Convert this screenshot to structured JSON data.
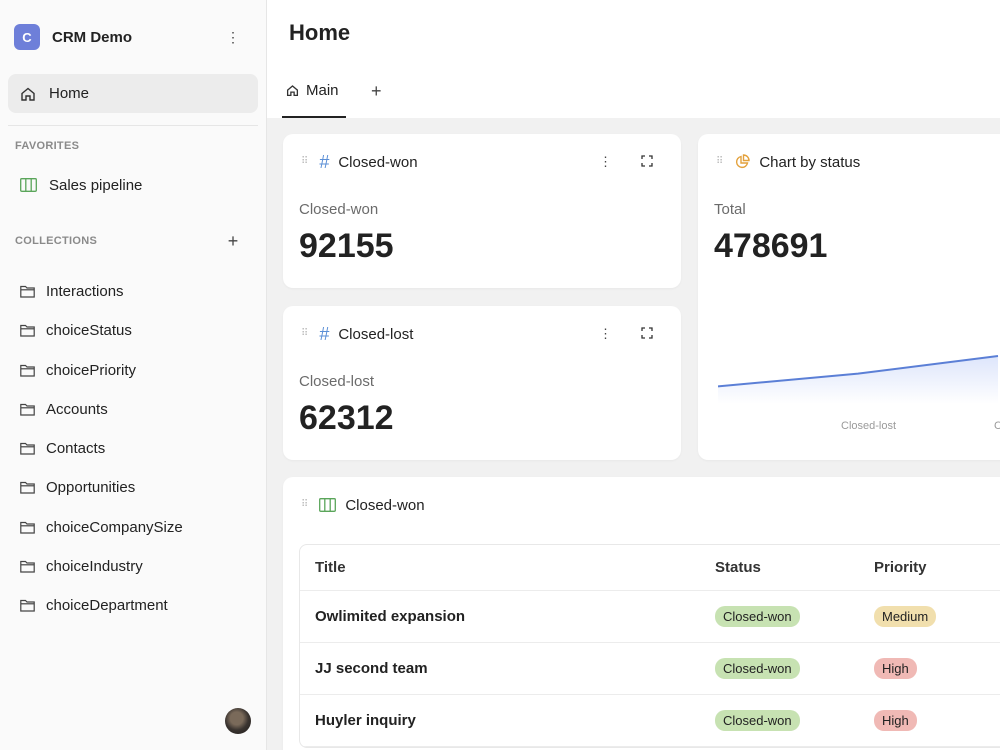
{
  "workspace": {
    "badge": "C",
    "name": "CRM Demo",
    "menu_glyph": "⋮"
  },
  "sidebar": {
    "home_label": "Home",
    "favorites_title": "FAVORITES",
    "favorites": [
      {
        "label": "Sales pipeline",
        "icon": "table-icon"
      }
    ],
    "collections_title": "COLLECTIONS",
    "collections_add": "+",
    "collections": [
      {
        "label": "Interactions"
      },
      {
        "label": "choiceStatus"
      },
      {
        "label": "choicePriority"
      },
      {
        "label": "Accounts"
      },
      {
        "label": "Contacts"
      },
      {
        "label": "Opportunities"
      },
      {
        "label": "choiceCompanySize"
      },
      {
        "label": "choiceIndustry"
      },
      {
        "label": "choiceDepartment"
      }
    ]
  },
  "header": {
    "title": "Home",
    "tabs": [
      {
        "label": "Main"
      }
    ],
    "add_tab": "+"
  },
  "widgets": {
    "closed_won": {
      "title": "Closed-won",
      "label": "Closed-won",
      "value": "92155",
      "menu_glyph": "⋮"
    },
    "closed_lost": {
      "title": "Closed-lost",
      "label": "Closed-lost",
      "value": "62312",
      "menu_glyph": "⋮"
    },
    "chart": {
      "title": "Chart by status",
      "label": "Total",
      "value": "478691"
    },
    "table": {
      "title": "Closed-won",
      "columns": [
        "Title",
        "Status",
        "Priority"
      ],
      "rows": [
        {
          "title": "Owlimited expansion",
          "status": "Closed-won",
          "priority": "Medium"
        },
        {
          "title": "JJ second team",
          "status": "Closed-won",
          "priority": "High"
        },
        {
          "title": "Huyler inquiry",
          "status": "Closed-won",
          "priority": "High"
        }
      ]
    }
  },
  "chart_data": {
    "type": "area",
    "title": "Chart by status",
    "categories": [
      "",
      "Closed-lost",
      "C"
    ],
    "values": [
      0.22,
      0.38,
      0.6
    ],
    "visible_tick_labels": [
      "Closed-lost",
      "C"
    ],
    "colors": {
      "line": "#5b7fd6",
      "fill": "#dde5fb"
    }
  },
  "colors": {
    "accent": "#6e7fd9",
    "status_won": "#c7e2b2",
    "priority_medium": "#f1dfad",
    "priority_high": "#f0b9b5"
  }
}
